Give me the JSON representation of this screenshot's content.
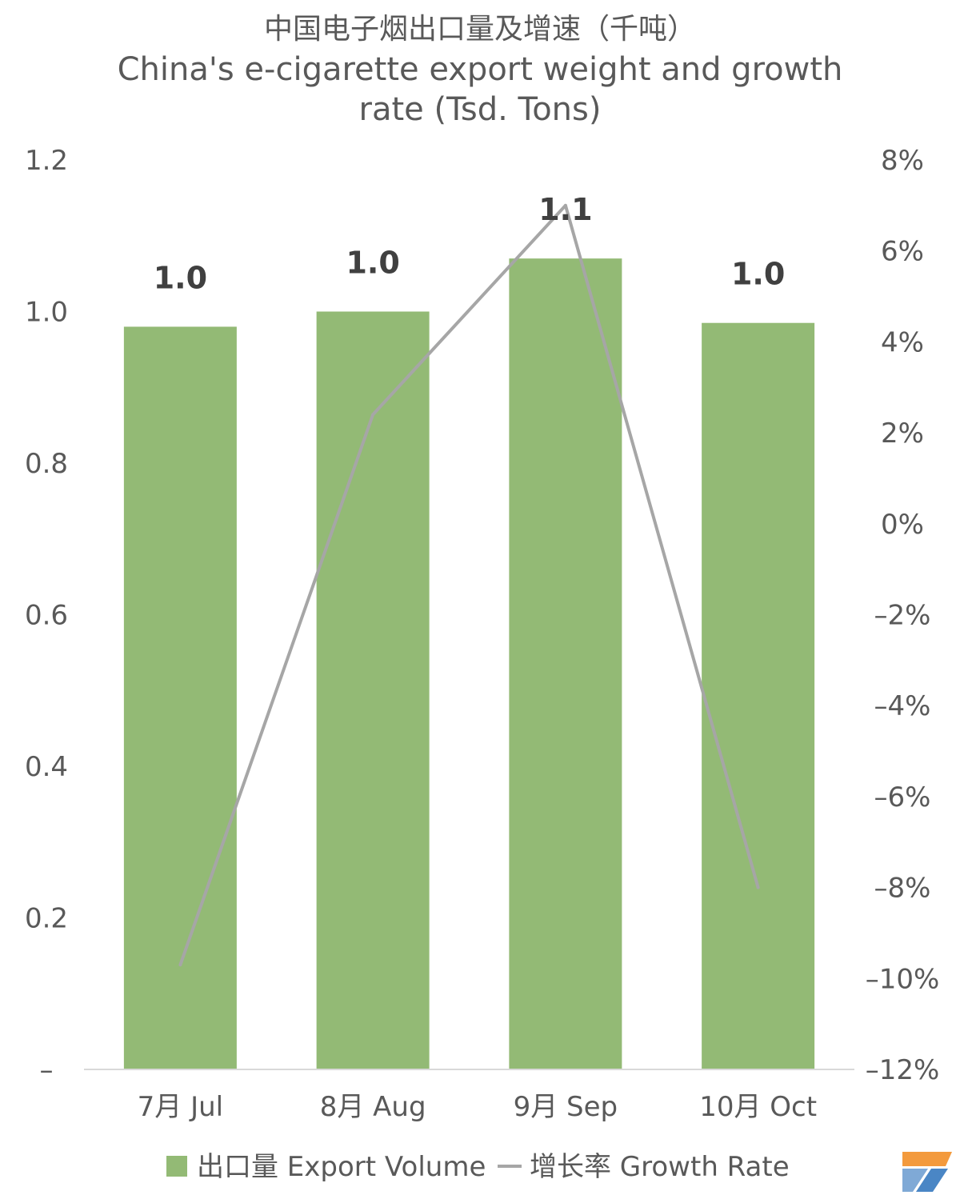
{
  "chart_data": {
    "type": "bar",
    "title_cn": "中国电子烟出口量及增速（千吨）",
    "title_en_line1": "China's e-cigarette export weight and growth",
    "title_en_line2": "rate (Tsd. Tons)",
    "categories": [
      "7月 Jul",
      "8月 Aug",
      "9月 Sep",
      "10月 Oct"
    ],
    "series": [
      {
        "name": "出口量 Export Volume",
        "type": "bar",
        "axis": "left",
        "color": "#93BA75",
        "values": [
          0.98,
          1.0,
          1.07,
          0.985
        ],
        "data_labels": [
          "1.0",
          "1.0",
          "1.1",
          "1.0"
        ]
      },
      {
        "name": "增长率 Growth Rate",
        "type": "line",
        "axis": "right",
        "color": "#A6A6A6",
        "values": [
          -9.7,
          2.4,
          7.0,
          -8.0
        ]
      }
    ],
    "left_axis": {
      "ylim": [
        0,
        1.2
      ],
      "ticks": [
        0,
        0.2,
        0.4,
        0.6,
        0.8,
        1.0,
        1.2
      ],
      "tick_labels": [
        "–",
        "0.2",
        "0.4",
        "0.6",
        "0.8",
        "1.0",
        "1.2"
      ]
    },
    "right_axis": {
      "ylim": [
        -12,
        8
      ],
      "ticks": [
        -12,
        -10,
        -8,
        -6,
        -4,
        -2,
        0,
        2,
        4,
        6,
        8
      ],
      "tick_labels": [
        "–12%",
        "–10%",
        "–8%",
        "–6%",
        "–4%",
        "–2%",
        "0%",
        "2%",
        "4%",
        "6%",
        "8%"
      ]
    },
    "grid": false,
    "legend_position": "bottom"
  }
}
